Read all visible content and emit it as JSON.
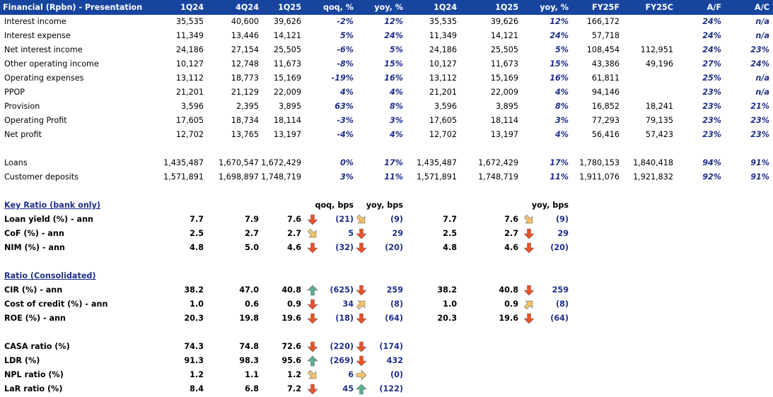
{
  "header": [
    "Financial (Rpbn) - Presentation",
    "1Q24",
    "4Q24",
    "1Q25",
    "qoq, %",
    "yoy, %",
    "1Q24",
    "1Q25",
    "yoy, %",
    "FY25F",
    "FY25C",
    "A/F",
    "A/C"
  ],
  "income_rows": [
    {
      "label": "Interest income",
      "v": [
        "35,535",
        "40,600",
        "39,626",
        "-2%",
        "12%",
        "35,535",
        "39,626",
        "12%",
        "166,172",
        "",
        "24%",
        "n/a"
      ]
    },
    {
      "label": "Interest expense",
      "v": [
        "11,349",
        "13,446",
        "14,121",
        "5%",
        "24%",
        "11,349",
        "14,121",
        "24%",
        "57,718",
        "",
        "24%",
        "n/a"
      ]
    },
    {
      "label": "Net interest income",
      "v": [
        "24,186",
        "27,154",
        "25,505",
        "-6%",
        "5%",
        "24,186",
        "25,505",
        "5%",
        "108,454",
        "112,951",
        "24%",
        "23%"
      ]
    },
    {
      "label": "Other operating income",
      "v": [
        "10,127",
        "12,748",
        "11,673",
        "-8%",
        "15%",
        "10,127",
        "11,673",
        "15%",
        "43,386",
        "49,196",
        "27%",
        "24%"
      ]
    },
    {
      "label": "Operating expenses",
      "v": [
        "13,112",
        "18,773",
        "15,169",
        "-19%",
        "16%",
        "13,112",
        "15,169",
        "16%",
        "61,811",
        "",
        "25%",
        "n/a"
      ]
    },
    {
      "label": "PPOP",
      "v": [
        "21,201",
        "21,129",
        "22,009",
        "4%",
        "4%",
        "21,201",
        "22,009",
        "4%",
        "94,146",
        "",
        "23%",
        "n/a"
      ]
    },
    {
      "label": "Provision",
      "v": [
        "3,596",
        "2,395",
        "3,895",
        "63%",
        "8%",
        "3,596",
        "3,895",
        "8%",
        "16,852",
        "18,241",
        "23%",
        "21%"
      ]
    },
    {
      "label": "Operating Profit",
      "v": [
        "17,605",
        "18,734",
        "18,114",
        "-3%",
        "3%",
        "17,605",
        "18,114",
        "3%",
        "77,293",
        "79,135",
        "23%",
        "23%"
      ]
    },
    {
      "label": "Net profit",
      "v": [
        "12,702",
        "13,765",
        "13,197",
        "-4%",
        "4%",
        "12,702",
        "13,197",
        "4%",
        "56,416",
        "57,423",
        "23%",
        "23%"
      ]
    }
  ],
  "balance_rows": [
    {
      "label": "Loans",
      "v": [
        "1,435,487",
        "1,670,547",
        "1,672,429",
        "0%",
        "17%",
        "1,435,487",
        "1,672,429",
        "17%",
        "1,780,153",
        "1,840,418",
        "94%",
        "91%"
      ]
    },
    {
      "label": "Customer deposits",
      "v": [
        "1,571,891",
        "1,698,897",
        "1,748,719",
        "3%",
        "11%",
        "1,571,891",
        "1,748,719",
        "11%",
        "1,911,076",
        "1,921,832",
        "92%",
        "91%"
      ]
    }
  ],
  "key_ratio": {
    "title": "Key Ratio (bank only)",
    "qoq_header": "qoq, bps",
    "yoy_header": "yoy, bps",
    "yoy_header2": "yoy, bps",
    "rows": [
      {
        "label": "Loan yield (%) - ann",
        "a": "7.7",
        "b": "7.9",
        "c": "7.6",
        "qoq": "(21)",
        "yoy": "(9)",
        "d": "7.7",
        "e": "7.6",
        "yoy2": "(9)",
        "ic": "down",
        "iq": "down-right",
        "iy": "down-right"
      },
      {
        "label": "CoF (%) - ann",
        "a": "2.5",
        "b": "2.7",
        "c": "2.7",
        "qoq": "5",
        "yoy": "29",
        "d": "2.5",
        "e": "2.7",
        "yoy2": "29",
        "ic": "down-right",
        "iq": "down",
        "iy": "down"
      },
      {
        "label": "NIM (%) - ann",
        "a": "4.8",
        "b": "5.0",
        "c": "4.6",
        "qoq": "(32)",
        "yoy": "(20)",
        "d": "4.8",
        "e": "4.6",
        "yoy2": "(20)",
        "ic": "down",
        "iq": "down",
        "iy": "down"
      }
    ]
  },
  "consolidated": {
    "title": "Ratio (Consolidated)",
    "rows": [
      {
        "label": "CIR (%) - ann",
        "a": "38.2",
        "b": "47.0",
        "c": "40.8",
        "qoq": "(625)",
        "yoy": "259",
        "d": "38.2",
        "e": "40.8",
        "yoy2": "259",
        "ic": "up",
        "iq": "down",
        "iy": "down"
      },
      {
        "label": "Cost of credit (%) - ann",
        "a": "1.0",
        "b": "0.6",
        "c": "0.9",
        "qoq": "34",
        "yoy": "(8)",
        "d": "1.0",
        "e": "0.9",
        "yoy2": "(8)",
        "ic": "down",
        "iq": "up-right",
        "iy": "up-right"
      },
      {
        "label": "ROE (%) - ann",
        "a": "20.3",
        "b": "19.8",
        "c": "19.6",
        "qoq": "(18)",
        "yoy": "(64)",
        "d": "20.3",
        "e": "19.6",
        "yoy2": "(64)",
        "ic": "down",
        "iq": "down",
        "iy": "down"
      }
    ]
  },
  "other_ratios": [
    {
      "label": "CASA ratio (%)",
      "a": "74.3",
      "b": "74.8",
      "c": "72.6",
      "qoq": "(220)",
      "yoy": "(174)",
      "ic": "down",
      "iq": "down"
    },
    {
      "label": "LDR (%)",
      "a": "91.3",
      "b": "98.3",
      "c": "95.6",
      "qoq": "(269)",
      "yoy": "432",
      "ic": "up",
      "iq": "down"
    },
    {
      "label": "NPL ratio (%)",
      "a": "1.2",
      "b": "1.1",
      "c": "1.2",
      "qoq": "6",
      "yoy": "(0)",
      "ic": "down-right",
      "iq": "right"
    },
    {
      "label": "LaR ratio (%)",
      "a": "8.4",
      "b": "6.8",
      "c": "7.2",
      "qoq": "45",
      "yoy": "(122)",
      "ic": "down",
      "iq": "up"
    }
  ],
  "colors": {
    "header_bg": "#17459e",
    "text_blue": "#1f2f8a",
    "arrow_red": "#e8522a",
    "arrow_green": "#5aaf8c",
    "arrow_amber": "#f2c267"
  }
}
